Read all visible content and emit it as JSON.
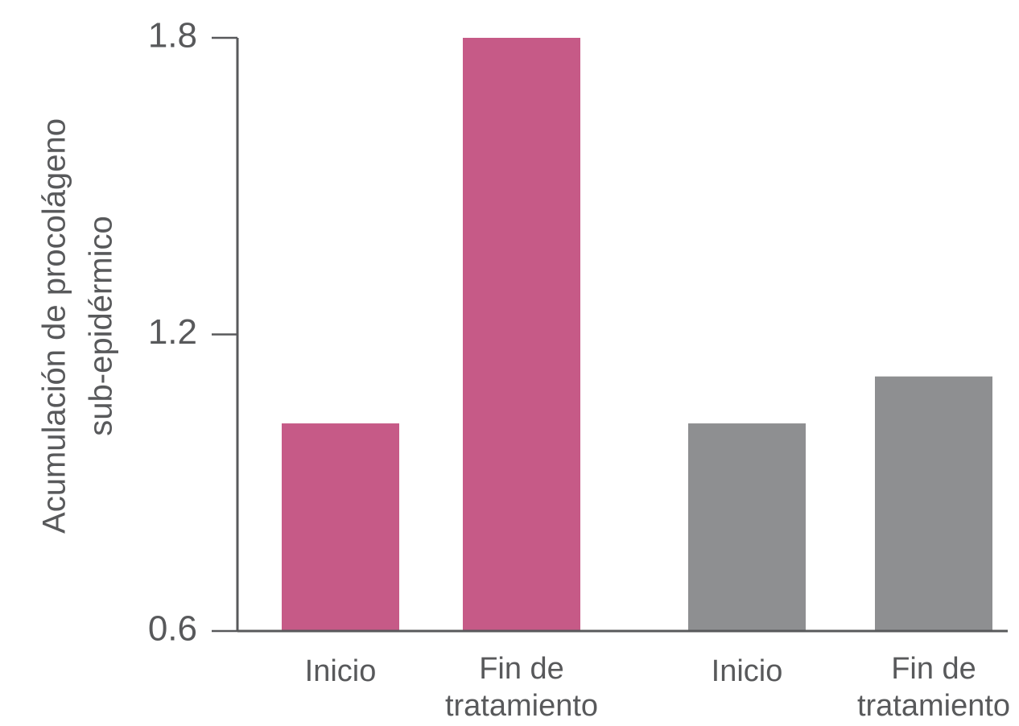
{
  "chart_data": {
    "type": "bar",
    "title": "",
    "ylabel_lines": [
      "Acumulación de procolágeno",
      "sub-epidérmico"
    ],
    "xlabel": "",
    "ylim": [
      0.6,
      1.8
    ],
    "yticks": [
      0.6,
      1.2,
      1.8
    ],
    "ytick_labels": [
      "0.6",
      "1.2",
      "1.8"
    ],
    "grid": false,
    "legend": "none",
    "bars": [
      {
        "label_lines": [
          "Inicio"
        ],
        "value": 1.02,
        "color": "#c65a87"
      },
      {
        "label_lines": [
          "Fin de",
          "tratamiento"
        ],
        "value": 1.8,
        "color": "#c65a87"
      },
      {
        "label_lines": [
          "Inicio"
        ],
        "value": 1.02,
        "color": "#8e8f91"
      },
      {
        "label_lines": [
          "Fin de",
          "tratamiento"
        ],
        "value": 1.115,
        "color": "#8e8f91"
      }
    ],
    "axis_color": "#58595b"
  }
}
